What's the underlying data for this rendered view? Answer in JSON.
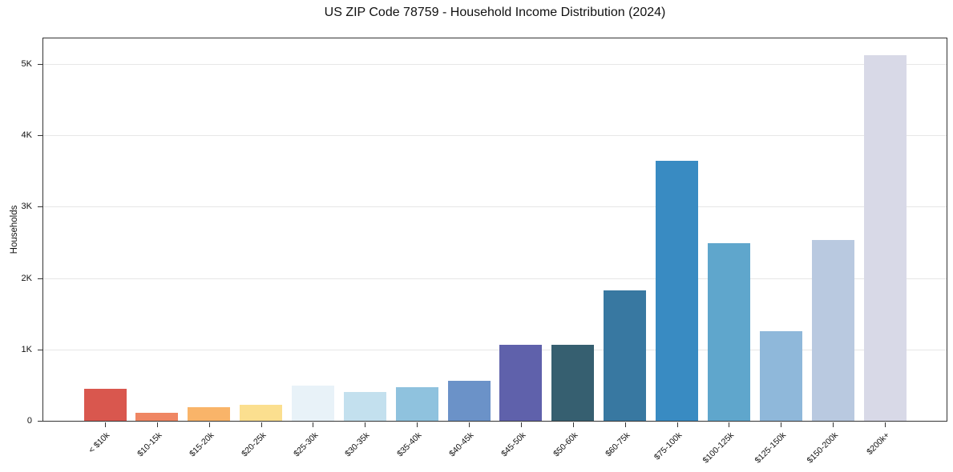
{
  "chart_data": {
    "type": "bar",
    "title": "US ZIP Code 78759 - Household Income Distribution (2024)",
    "xlabel": "",
    "ylabel": "Households",
    "ylim": [
      0,
      5360
    ],
    "grid": "horizontal-only",
    "legend": "none",
    "yticks": {
      "labels": [
        "0",
        "1K",
        "2K",
        "3K",
        "4K",
        "5K"
      ],
      "values": [
        0,
        1000,
        2000,
        3000,
        4000,
        5000
      ]
    },
    "categories": [
      "< $10k",
      "$10-15k",
      "$15-20k",
      "$20-25k",
      "$25-30k",
      "$30-35k",
      "$35-40k",
      "$40-45k",
      "$45-50k",
      "$50-60k",
      "$60-75k",
      "$75-100k",
      "$100-125k",
      "$125-150k",
      "$150-200k",
      "$200k+"
    ],
    "values": [
      450,
      110,
      190,
      230,
      490,
      400,
      470,
      560,
      1070,
      1070,
      1830,
      3640,
      2490,
      1260,
      2540,
      5120
    ],
    "bar_colors": [
      "#d9574e",
      "#ef8663",
      "#f9b469",
      "#fbdf8f",
      "#e8f2f8",
      "#c3e0ee",
      "#8fc2de",
      "#6b92c8",
      "#5f61ab",
      "#365f70",
      "#3878a1",
      "#398bc2",
      "#5fa6cc",
      "#8fb8da",
      "#b9c9e0",
      "#d8d9e7"
    ],
    "colors": {
      "background": "#ffffff",
      "spine": "#333333",
      "gridline": "#e7e7e7",
      "text": "#111111"
    }
  }
}
